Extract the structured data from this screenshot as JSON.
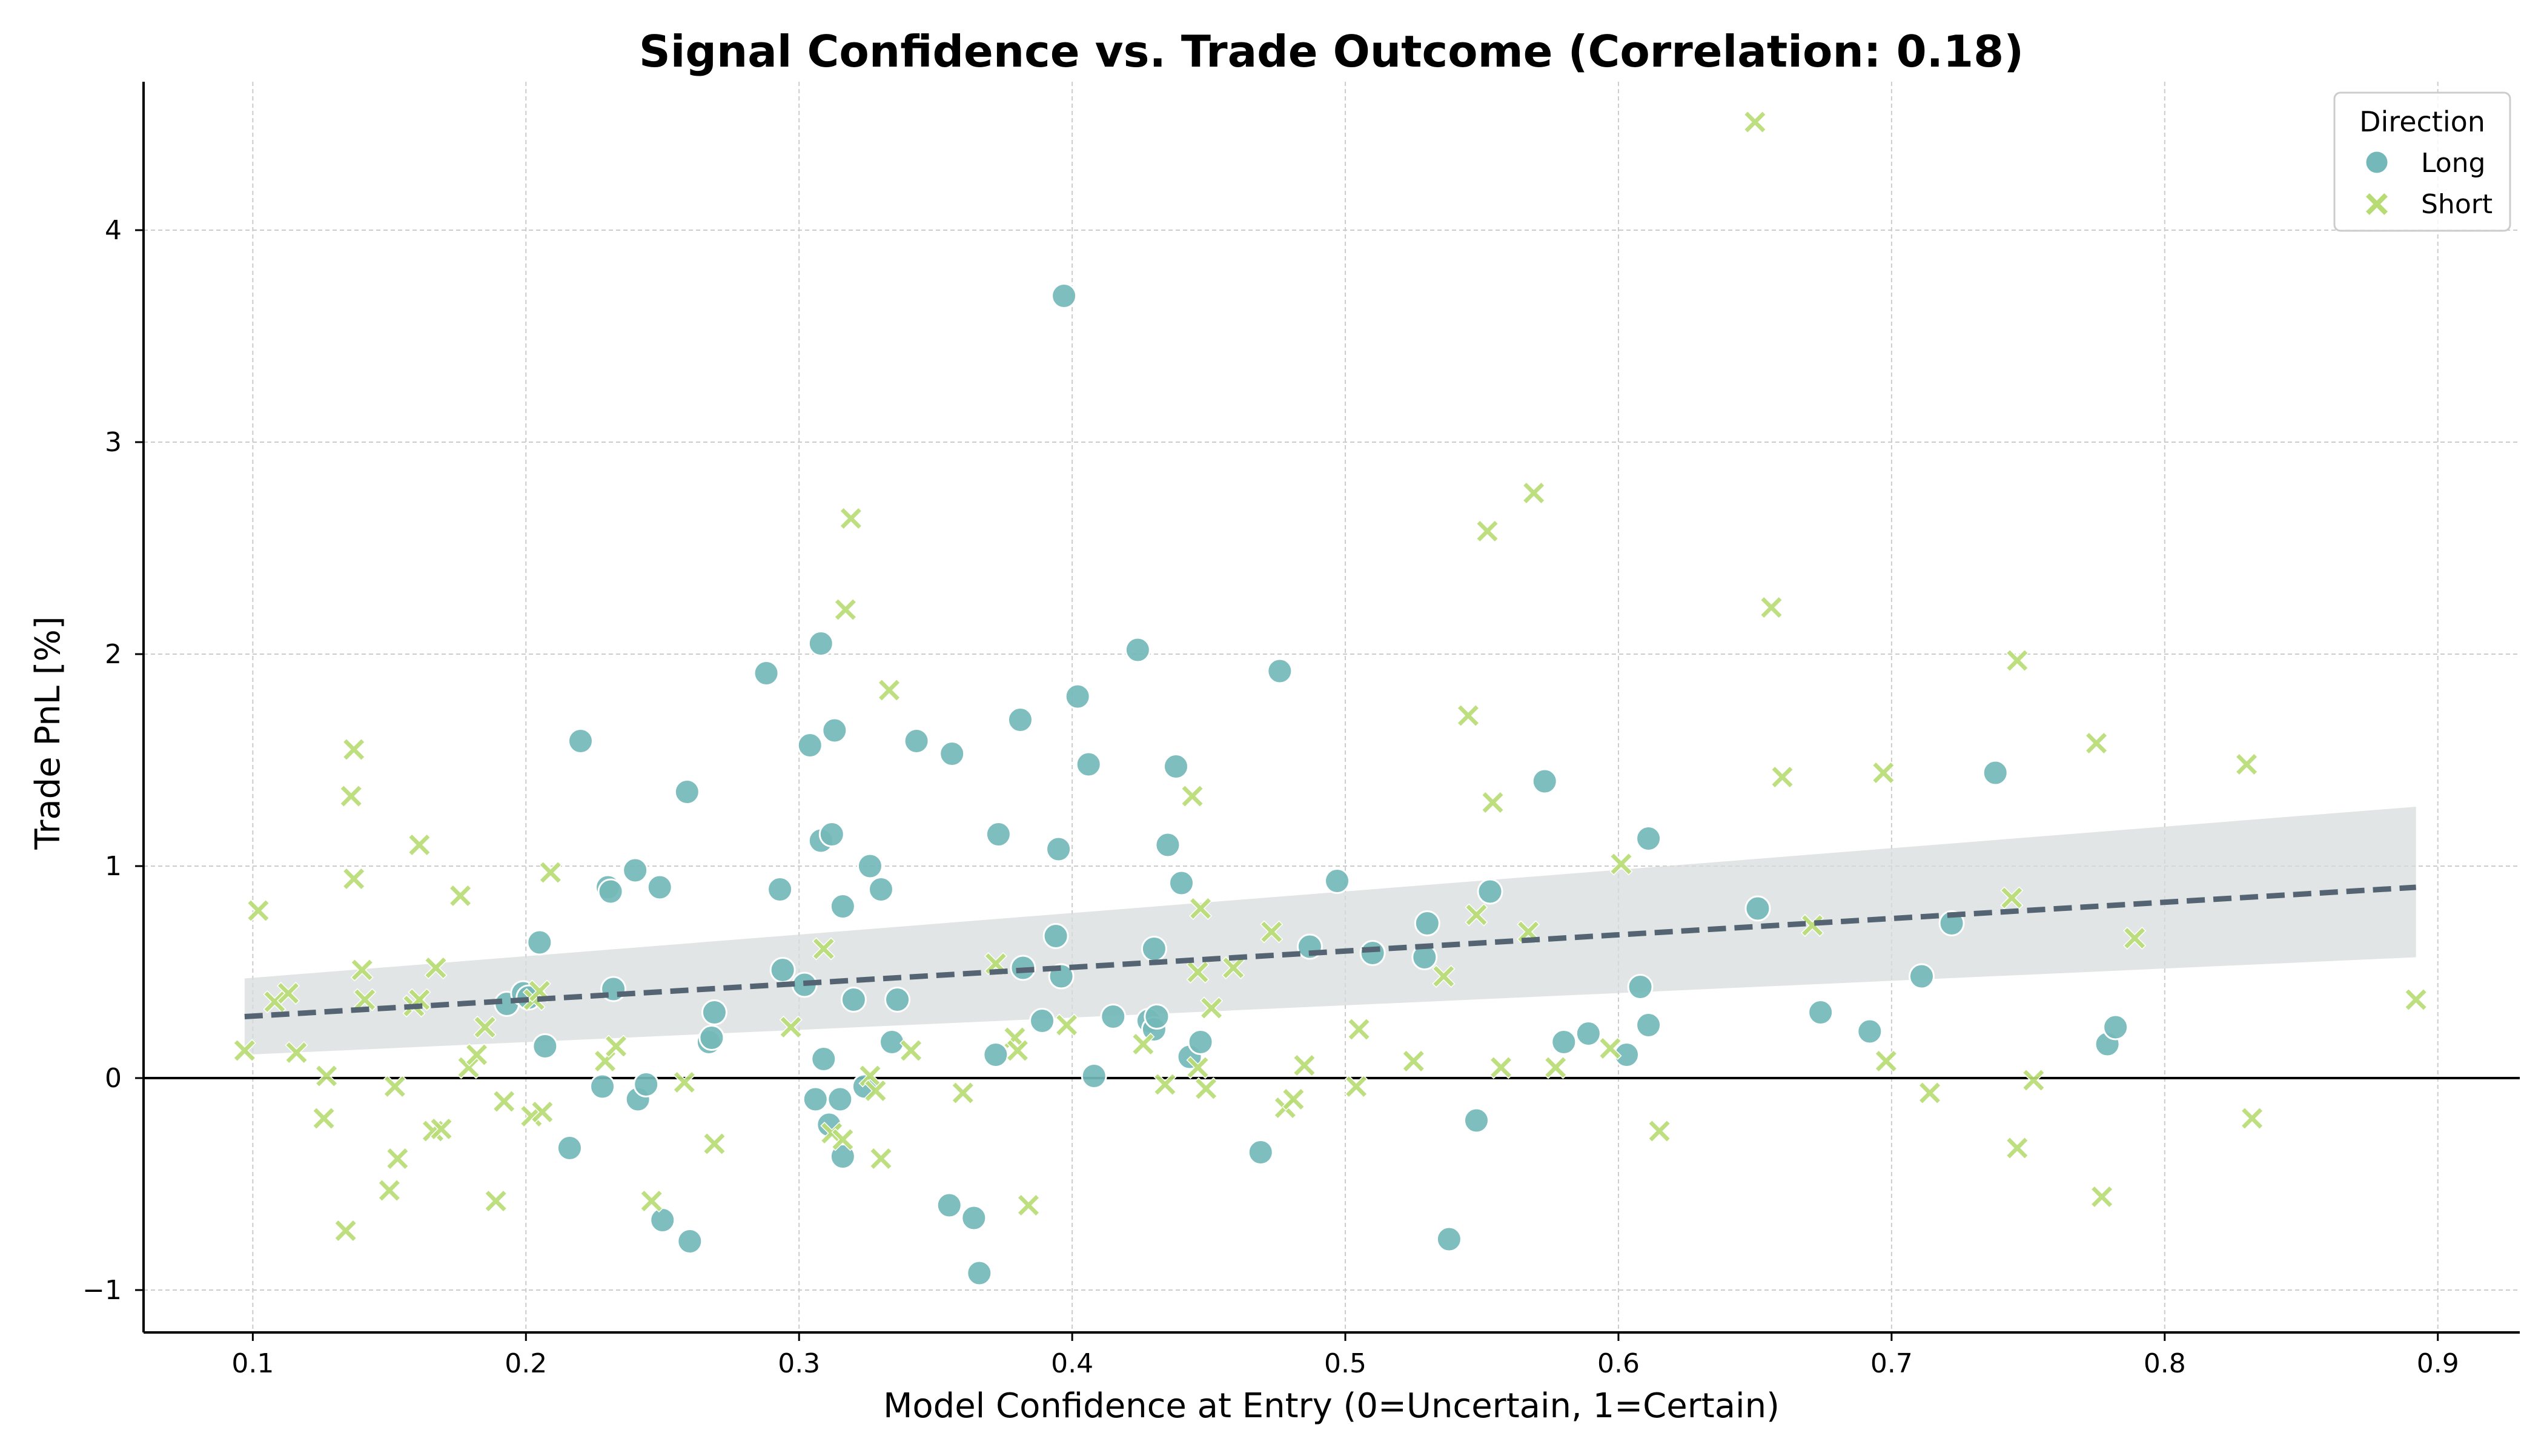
{
  "chart_data": {
    "type": "scatter",
    "title": "Signal Confidence vs. Trade Outcome (Correlation: 0.18)",
    "xlabel": "Model Confidence at Entry (0=Uncertain, 1=Certain)",
    "ylabel": "Trade PnL [%]",
    "xlim": [
      0.06,
      0.93
    ],
    "ylim": [
      -1.2,
      4.7
    ],
    "xticks": [
      "0.1",
      "0.2",
      "0.3",
      "0.4",
      "0.5",
      "0.6",
      "0.7",
      "0.8",
      "0.9"
    ],
    "yticks": [
      "−1",
      "0",
      "1",
      "2",
      "3",
      "4"
    ],
    "grid": true,
    "legend": {
      "title": "Direction",
      "position": "top-right",
      "entries": [
        "Long",
        "Short"
      ]
    },
    "colors": {
      "long": "#74b8b9",
      "short": "#b8dc74",
      "trend": "#556472",
      "band": "#d7dcdd",
      "grid": "#cccccc",
      "zero_line": "#000000"
    },
    "trend_line": {
      "x": [
        0.097,
        0.892
      ],
      "y": [
        0.29,
        0.9
      ]
    },
    "confidence_band": {
      "x": [
        0.097,
        0.892
      ],
      "lower": [
        0.11,
        0.57
      ],
      "upper": [
        0.47,
        1.28
      ]
    },
    "series": [
      {
        "name": "Long",
        "marker": "circle",
        "points": [
          [
            0.193,
            0.35
          ],
          [
            0.199,
            0.4
          ],
          [
            0.201,
            0.38
          ],
          [
            0.205,
            0.64
          ],
          [
            0.207,
            0.15
          ],
          [
            0.216,
            -0.33
          ],
          [
            0.22,
            1.59
          ],
          [
            0.228,
            -0.04
          ],
          [
            0.23,
            0.9
          ],
          [
            0.231,
            0.88
          ],
          [
            0.232,
            0.42
          ],
          [
            0.24,
            0.98
          ],
          [
            0.241,
            -0.1
          ],
          [
            0.244,
            -0.03
          ],
          [
            0.249,
            0.9
          ],
          [
            0.25,
            -0.67
          ],
          [
            0.259,
            1.35
          ],
          [
            0.26,
            -0.77
          ],
          [
            0.267,
            0.17
          ],
          [
            0.268,
            0.19
          ],
          [
            0.269,
            0.31
          ],
          [
            0.288,
            1.91
          ],
          [
            0.293,
            0.89
          ],
          [
            0.294,
            0.51
          ],
          [
            0.302,
            0.44
          ],
          [
            0.304,
            1.57
          ],
          [
            0.306,
            -0.1
          ],
          [
            0.308,
            2.05
          ],
          [
            0.308,
            1.12
          ],
          [
            0.309,
            0.09
          ],
          [
            0.311,
            -0.22
          ],
          [
            0.312,
            1.15
          ],
          [
            0.313,
            1.64
          ],
          [
            0.315,
            -0.1
          ],
          [
            0.316,
            -0.37
          ],
          [
            0.316,
            0.81
          ],
          [
            0.32,
            0.37
          ],
          [
            0.324,
            -0.04
          ],
          [
            0.326,
            1.0
          ],
          [
            0.33,
            0.89
          ],
          [
            0.334,
            0.17
          ],
          [
            0.336,
            0.37
          ],
          [
            0.343,
            1.59
          ],
          [
            0.355,
            -0.6
          ],
          [
            0.356,
            1.53
          ],
          [
            0.364,
            -0.66
          ],
          [
            0.366,
            -0.92
          ],
          [
            0.372,
            0.11
          ],
          [
            0.373,
            1.15
          ],
          [
            0.381,
            1.69
          ],
          [
            0.382,
            0.52
          ],
          [
            0.389,
            0.27
          ],
          [
            0.394,
            0.67
          ],
          [
            0.395,
            1.08
          ],
          [
            0.396,
            0.48
          ],
          [
            0.397,
            3.69
          ],
          [
            0.402,
            1.8
          ],
          [
            0.406,
            1.48
          ],
          [
            0.408,
            0.01
          ],
          [
            0.415,
            0.29
          ],
          [
            0.424,
            2.02
          ],
          [
            0.428,
            0.27
          ],
          [
            0.43,
            0.61
          ],
          [
            0.43,
            0.23
          ],
          [
            0.431,
            0.29
          ],
          [
            0.435,
            1.1
          ],
          [
            0.438,
            1.47
          ],
          [
            0.44,
            0.92
          ],
          [
            0.443,
            0.1
          ],
          [
            0.447,
            0.17
          ],
          [
            0.469,
            -0.35
          ],
          [
            0.476,
            1.92
          ],
          [
            0.487,
            0.62
          ],
          [
            0.497,
            0.93
          ],
          [
            0.51,
            0.59
          ],
          [
            0.53,
            0.73
          ],
          [
            0.529,
            0.57
          ],
          [
            0.538,
            -0.76
          ],
          [
            0.548,
            -0.2
          ],
          [
            0.553,
            0.88
          ],
          [
            0.573,
            1.4
          ],
          [
            0.58,
            0.17
          ],
          [
            0.589,
            0.21
          ],
          [
            0.603,
            0.11
          ],
          [
            0.608,
            0.43
          ],
          [
            0.611,
            0.25
          ],
          [
            0.611,
            1.13
          ],
          [
            0.651,
            0.8
          ],
          [
            0.674,
            0.31
          ],
          [
            0.692,
            0.22
          ],
          [
            0.711,
            0.48
          ],
          [
            0.722,
            0.73
          ],
          [
            0.738,
            1.44
          ],
          [
            0.779,
            0.16
          ],
          [
            0.782,
            0.24
          ]
        ]
      },
      {
        "name": "Short",
        "marker": "x",
        "points": [
          [
            0.097,
            0.13
          ],
          [
            0.102,
            0.79
          ],
          [
            0.108,
            0.36
          ],
          [
            0.113,
            0.4
          ],
          [
            0.116,
            0.12
          ],
          [
            0.126,
            -0.19
          ],
          [
            0.127,
            0.01
          ],
          [
            0.134,
            -0.72
          ],
          [
            0.136,
            1.33
          ],
          [
            0.137,
            1.55
          ],
          [
            0.137,
            0.94
          ],
          [
            0.14,
            0.51
          ],
          [
            0.141,
            0.37
          ],
          [
            0.15,
            -0.53
          ],
          [
            0.152,
            -0.04
          ],
          [
            0.153,
            -0.38
          ],
          [
            0.159,
            0.34
          ],
          [
            0.161,
            0.37
          ],
          [
            0.161,
            1.1
          ],
          [
            0.166,
            -0.25
          ],
          [
            0.167,
            0.52
          ],
          [
            0.169,
            -0.24
          ],
          [
            0.176,
            0.86
          ],
          [
            0.179,
            0.05
          ],
          [
            0.182,
            0.11
          ],
          [
            0.185,
            0.24
          ],
          [
            0.189,
            -0.58
          ],
          [
            0.192,
            -0.11
          ],
          [
            0.202,
            -0.18
          ],
          [
            0.203,
            0.37
          ],
          [
            0.205,
            0.41
          ],
          [
            0.206,
            -0.16
          ],
          [
            0.209,
            0.97
          ],
          [
            0.229,
            0.08
          ],
          [
            0.233,
            0.15
          ],
          [
            0.246,
            -0.58
          ],
          [
            0.258,
            -0.02
          ],
          [
            0.269,
            -0.31
          ],
          [
            0.297,
            0.24
          ],
          [
            0.309,
            0.61
          ],
          [
            0.312,
            -0.26
          ],
          [
            0.316,
            -0.29
          ],
          [
            0.317,
            2.21
          ],
          [
            0.319,
            2.64
          ],
          [
            0.326,
            0.01
          ],
          [
            0.328,
            -0.06
          ],
          [
            0.33,
            -0.38
          ],
          [
            0.333,
            1.83
          ],
          [
            0.341,
            0.13
          ],
          [
            0.36,
            -0.07
          ],
          [
            0.372,
            0.54
          ],
          [
            0.379,
            0.19
          ],
          [
            0.38,
            0.13
          ],
          [
            0.384,
            -0.6
          ],
          [
            0.398,
            0.25
          ],
          [
            0.434,
            -0.03
          ],
          [
            0.426,
            0.16
          ],
          [
            0.444,
            1.33
          ],
          [
            0.446,
            0.5
          ],
          [
            0.446,
            0.05
          ],
          [
            0.447,
            0.8
          ],
          [
            0.449,
            -0.05
          ],
          [
            0.451,
            0.33
          ],
          [
            0.459,
            0.52
          ],
          [
            0.473,
            0.69
          ],
          [
            0.478,
            -0.14
          ],
          [
            0.481,
            -0.1
          ],
          [
            0.485,
            0.06
          ],
          [
            0.504,
            -0.04
          ],
          [
            0.505,
            0.23
          ],
          [
            0.525,
            0.08
          ],
          [
            0.536,
            0.48
          ],
          [
            0.545,
            1.71
          ],
          [
            0.548,
            0.77
          ],
          [
            0.552,
            2.58
          ],
          [
            0.554,
            1.3
          ],
          [
            0.557,
            0.05
          ],
          [
            0.567,
            0.69
          ],
          [
            0.569,
            2.76
          ],
          [
            0.577,
            0.05
          ],
          [
            0.597,
            0.14
          ],
          [
            0.601,
            1.01
          ],
          [
            0.615,
            -0.25
          ],
          [
            0.65,
            4.51
          ],
          [
            0.656,
            2.22
          ],
          [
            0.66,
            1.42
          ],
          [
            0.671,
            0.72
          ],
          [
            0.697,
            1.44
          ],
          [
            0.698,
            0.08
          ],
          [
            0.714,
            -0.07
          ],
          [
            0.744,
            0.85
          ],
          [
            0.746,
            1.97
          ],
          [
            0.746,
            -0.33
          ],
          [
            0.752,
            -0.01
          ],
          [
            0.775,
            1.58
          ],
          [
            0.777,
            -0.56
          ],
          [
            0.789,
            0.66
          ],
          [
            0.83,
            1.48
          ],
          [
            0.832,
            -0.19
          ],
          [
            0.892,
            0.37
          ]
        ]
      }
    ]
  }
}
